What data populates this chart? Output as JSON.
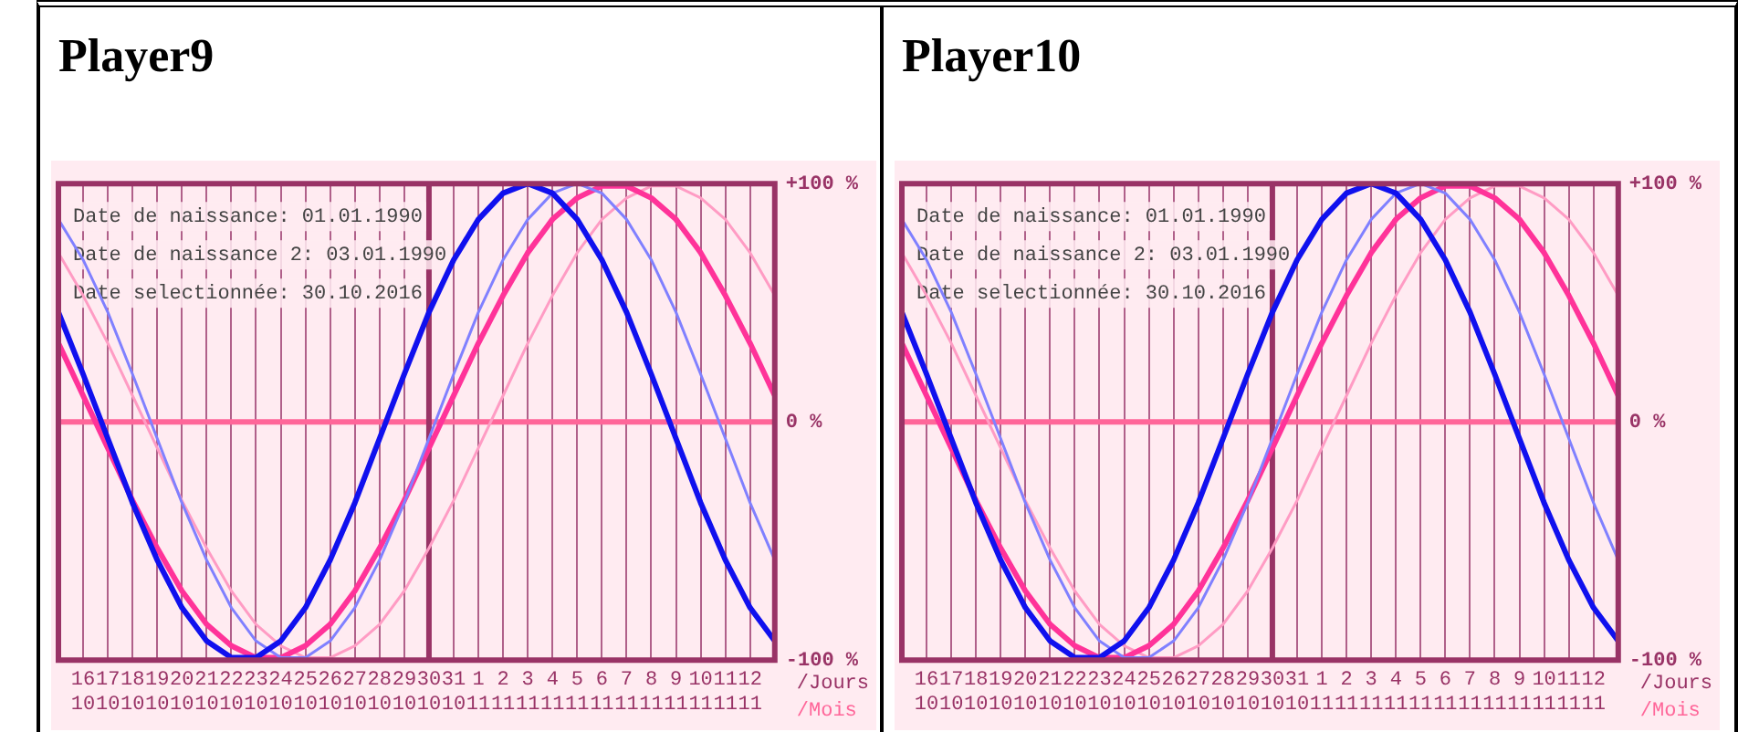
{
  "chart_data": [
    {
      "type": "line",
      "title": "Player9",
      "xlabel": "/Jours\n/Mois",
      "categories": [
        null,
        "16\n10",
        "17\n10",
        "18\n10",
        "19\n10",
        "20\n10",
        "21\n10",
        "22\n10",
        "23\n10",
        "24\n10",
        "25\n10",
        "26\n10",
        "27\n10",
        "28\n10",
        "29\n10",
        "30\n10",
        "31\n10",
        "1\n11",
        "2\n11",
        "3\n11",
        "4\n11",
        "5\n11",
        "6\n11",
        "7\n11",
        "8\n11",
        "9\n11",
        "10\n11",
        "11\n11",
        "12\n11",
        null
      ],
      "series": [
        {
          "color": "#1010ee",
          "values": [
            46,
            20,
            -7,
            -34,
            -58,
            -78,
            -92,
            -99,
            -99,
            -92,
            -78,
            -58,
            -34,
            -7,
            20,
            46,
            68,
            85,
            96,
            100,
            96,
            85,
            68,
            46,
            20,
            -7,
            -34,
            -58,
            -78,
            -92
          ]
        },
        {
          "color": "#8080ff",
          "values": [
            85,
            68,
            46,
            20,
            -7,
            -34,
            -58,
            -78,
            -92,
            -99,
            -99,
            -92,
            -78,
            -58,
            -34,
            -7,
            20,
            46,
            68,
            85,
            96,
            100,
            96,
            85,
            68,
            46,
            20,
            -7,
            -34,
            -58
          ]
        },
        {
          "color": "#ff3399",
          "values": [
            33,
            11,
            -11,
            -33,
            -53,
            -71,
            -85,
            -94,
            -99,
            -99,
            -94,
            -85,
            -71,
            -53,
            -33,
            -11,
            11,
            33,
            53,
            71,
            85,
            94,
            99,
            99,
            94,
            85,
            71,
            53,
            33,
            11
          ]
        },
        {
          "color": "#ff9cc4",
          "values": [
            71,
            53,
            33,
            11,
            -11,
            -33,
            -53,
            -71,
            -85,
            -94,
            -99,
            -99,
            -94,
            -85,
            -71,
            -53,
            -33,
            -11,
            11,
            33,
            53,
            71,
            85,
            94,
            99,
            99,
            94,
            85,
            71,
            53
          ]
        }
      ],
      "ylim": [
        -100,
        100
      ],
      "yticks": [
        {
          "value": -100,
          "label": "-100 %"
        },
        {
          "value": 0,
          "label": "0 %"
        },
        {
          "value": 100,
          "label": "+100 %"
        }
      ],
      "grid": "x",
      "legend": false,
      "marker": "none",
      "line_style": "solid",
      "ref_lines": [
        {
          "axis": "y",
          "value": 0,
          "color": "#ff6699"
        },
        {
          "axis": "x",
          "value": "30\n10",
          "color": "#993366"
        }
      ],
      "annotations": [
        "Date de naissance: 01.01.1990",
        "Date de naissance 2: 03.01.1990",
        "Date selectionnée: 30.10.2016"
      ]
    },
    {
      "type": "line",
      "title": "Player10",
      "xlabel": "/Jours\n/Mois",
      "categories": [
        null,
        "16\n10",
        "17\n10",
        "18\n10",
        "19\n10",
        "20\n10",
        "21\n10",
        "22\n10",
        "23\n10",
        "24\n10",
        "25\n10",
        "26\n10",
        "27\n10",
        "28\n10",
        "29\n10",
        "30\n10",
        "31\n10",
        "1\n11",
        "2\n11",
        "3\n11",
        "4\n11",
        "5\n11",
        "6\n11",
        "7\n11",
        "8\n11",
        "9\n11",
        "10\n11",
        "11\n11",
        "12\n11",
        null
      ],
      "series": [
        {
          "color": "#1010ee",
          "values": [
            46,
            20,
            -7,
            -34,
            -58,
            -78,
            -92,
            -99,
            -99,
            -92,
            -78,
            -58,
            -34,
            -7,
            20,
            46,
            68,
            85,
            96,
            100,
            96,
            85,
            68,
            46,
            20,
            -7,
            -34,
            -58,
            -78,
            -92
          ]
        },
        {
          "color": "#8080ff",
          "values": [
            85,
            68,
            46,
            20,
            -7,
            -34,
            -58,
            -78,
            -92,
            -99,
            -99,
            -92,
            -78,
            -58,
            -34,
            -7,
            20,
            46,
            68,
            85,
            96,
            100,
            96,
            85,
            68,
            46,
            20,
            -7,
            -34,
            -58
          ]
        },
        {
          "color": "#ff3399",
          "values": [
            33,
            11,
            -11,
            -33,
            -53,
            -71,
            -85,
            -94,
            -99,
            -99,
            -94,
            -85,
            -71,
            -53,
            -33,
            -11,
            11,
            33,
            53,
            71,
            85,
            94,
            99,
            99,
            94,
            85,
            71,
            53,
            33,
            11
          ]
        },
        {
          "color": "#ff9cc4",
          "values": [
            71,
            53,
            33,
            11,
            -11,
            -33,
            -53,
            -71,
            -85,
            -94,
            -99,
            -99,
            -94,
            -85,
            -71,
            -53,
            -33,
            -11,
            11,
            33,
            53,
            71,
            85,
            94,
            99,
            99,
            94,
            85,
            71,
            53
          ]
        }
      ],
      "ylim": [
        -100,
        100
      ],
      "yticks": [
        {
          "value": -100,
          "label": "-100 %"
        },
        {
          "value": 0,
          "label": "0 %"
        },
        {
          "value": 100,
          "label": "+100 %"
        }
      ],
      "grid": "x",
      "legend": false,
      "marker": "none",
      "line_style": "solid",
      "ref_lines": [
        {
          "axis": "y",
          "value": 0,
          "color": "#ff6699"
        },
        {
          "axis": "x",
          "value": "30\n10",
          "color": "#993366"
        }
      ],
      "annotations": [
        "Date de naissance: 01.01.1990",
        "Date de naissance 2: 03.01.1990",
        "Date selectionnée: 30.10.2016"
      ]
    }
  ]
}
